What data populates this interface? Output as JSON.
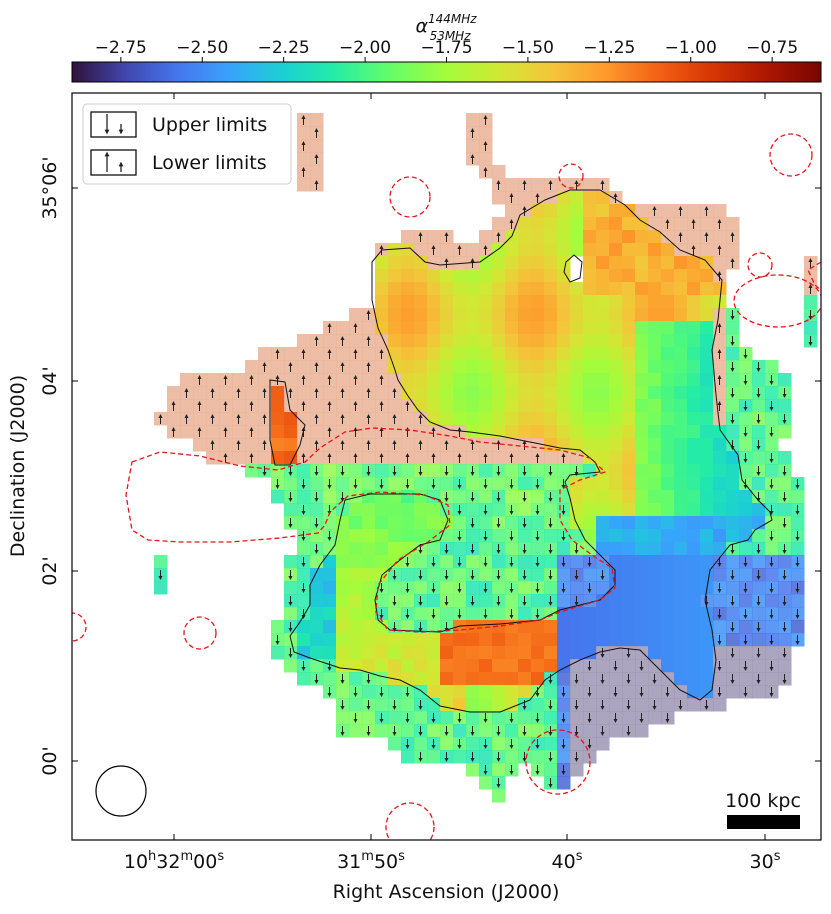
{
  "chart_data": {
    "type": "heatmap",
    "title": "",
    "xlabel": "Right Ascension (J2000)",
    "ylabel": "Declination (J2000)",
    "colorbar": {
      "label_base": "α",
      "label_super": "144MHz",
      "label_sub": "53MHz",
      "range": [
        -2.9,
        -0.6
      ],
      "ticks": [
        -2.75,
        -2.5,
        -2.25,
        -2.0,
        -1.75,
        -1.5,
        -1.25,
        -1.0,
        -0.75
      ],
      "tick_labels": [
        "−2.75",
        "−2.50",
        "−2.25",
        "−2.00",
        "−1.75",
        "−1.50",
        "−1.25",
        "−1.00",
        "−0.75"
      ],
      "colormap": "turbo",
      "location": "top"
    },
    "x_ticks": [
      {
        "label_main": "10",
        "sup1": "h",
        "mid": "32",
        "sup2": "m",
        "end": "00",
        "sup3": "s"
      },
      {
        "label_main": "31",
        "sup1": "m",
        "mid": "50",
        "sup2": "s",
        "end": "",
        "sup3": ""
      },
      {
        "label_main": "40",
        "sup1": "s",
        "mid": "",
        "sup2": "",
        "end": "",
        "sup3": ""
      },
      {
        "label_main": "30",
        "sup1": "s",
        "mid": "",
        "sup2": "",
        "end": "",
        "sup3": ""
      }
    ],
    "y_ticks": [
      {
        "label": "35°06'"
      },
      {
        "label": "04'"
      },
      {
        "label": "02'"
      },
      {
        "label": "00'"
      }
    ],
    "legend": {
      "placement": "top-left",
      "entries": [
        {
          "label": "Upper limits",
          "marker": "down-arrow"
        },
        {
          "label": "Lower limits",
          "marker": "up-arrow"
        }
      ]
    },
    "scale_bar": {
      "label": "100 kpc"
    },
    "beam": {
      "shape": "circle"
    },
    "regions": {
      "alpha_high": -1.15,
      "alpha_mid": -1.55,
      "alpha_low": -2.55,
      "limit_color_upper": "#a9a9c8",
      "limit_color_lower": "#e9a98a",
      "contour_color": "#e8141c",
      "contour_style": "dashed"
    },
    "grid": false
  }
}
